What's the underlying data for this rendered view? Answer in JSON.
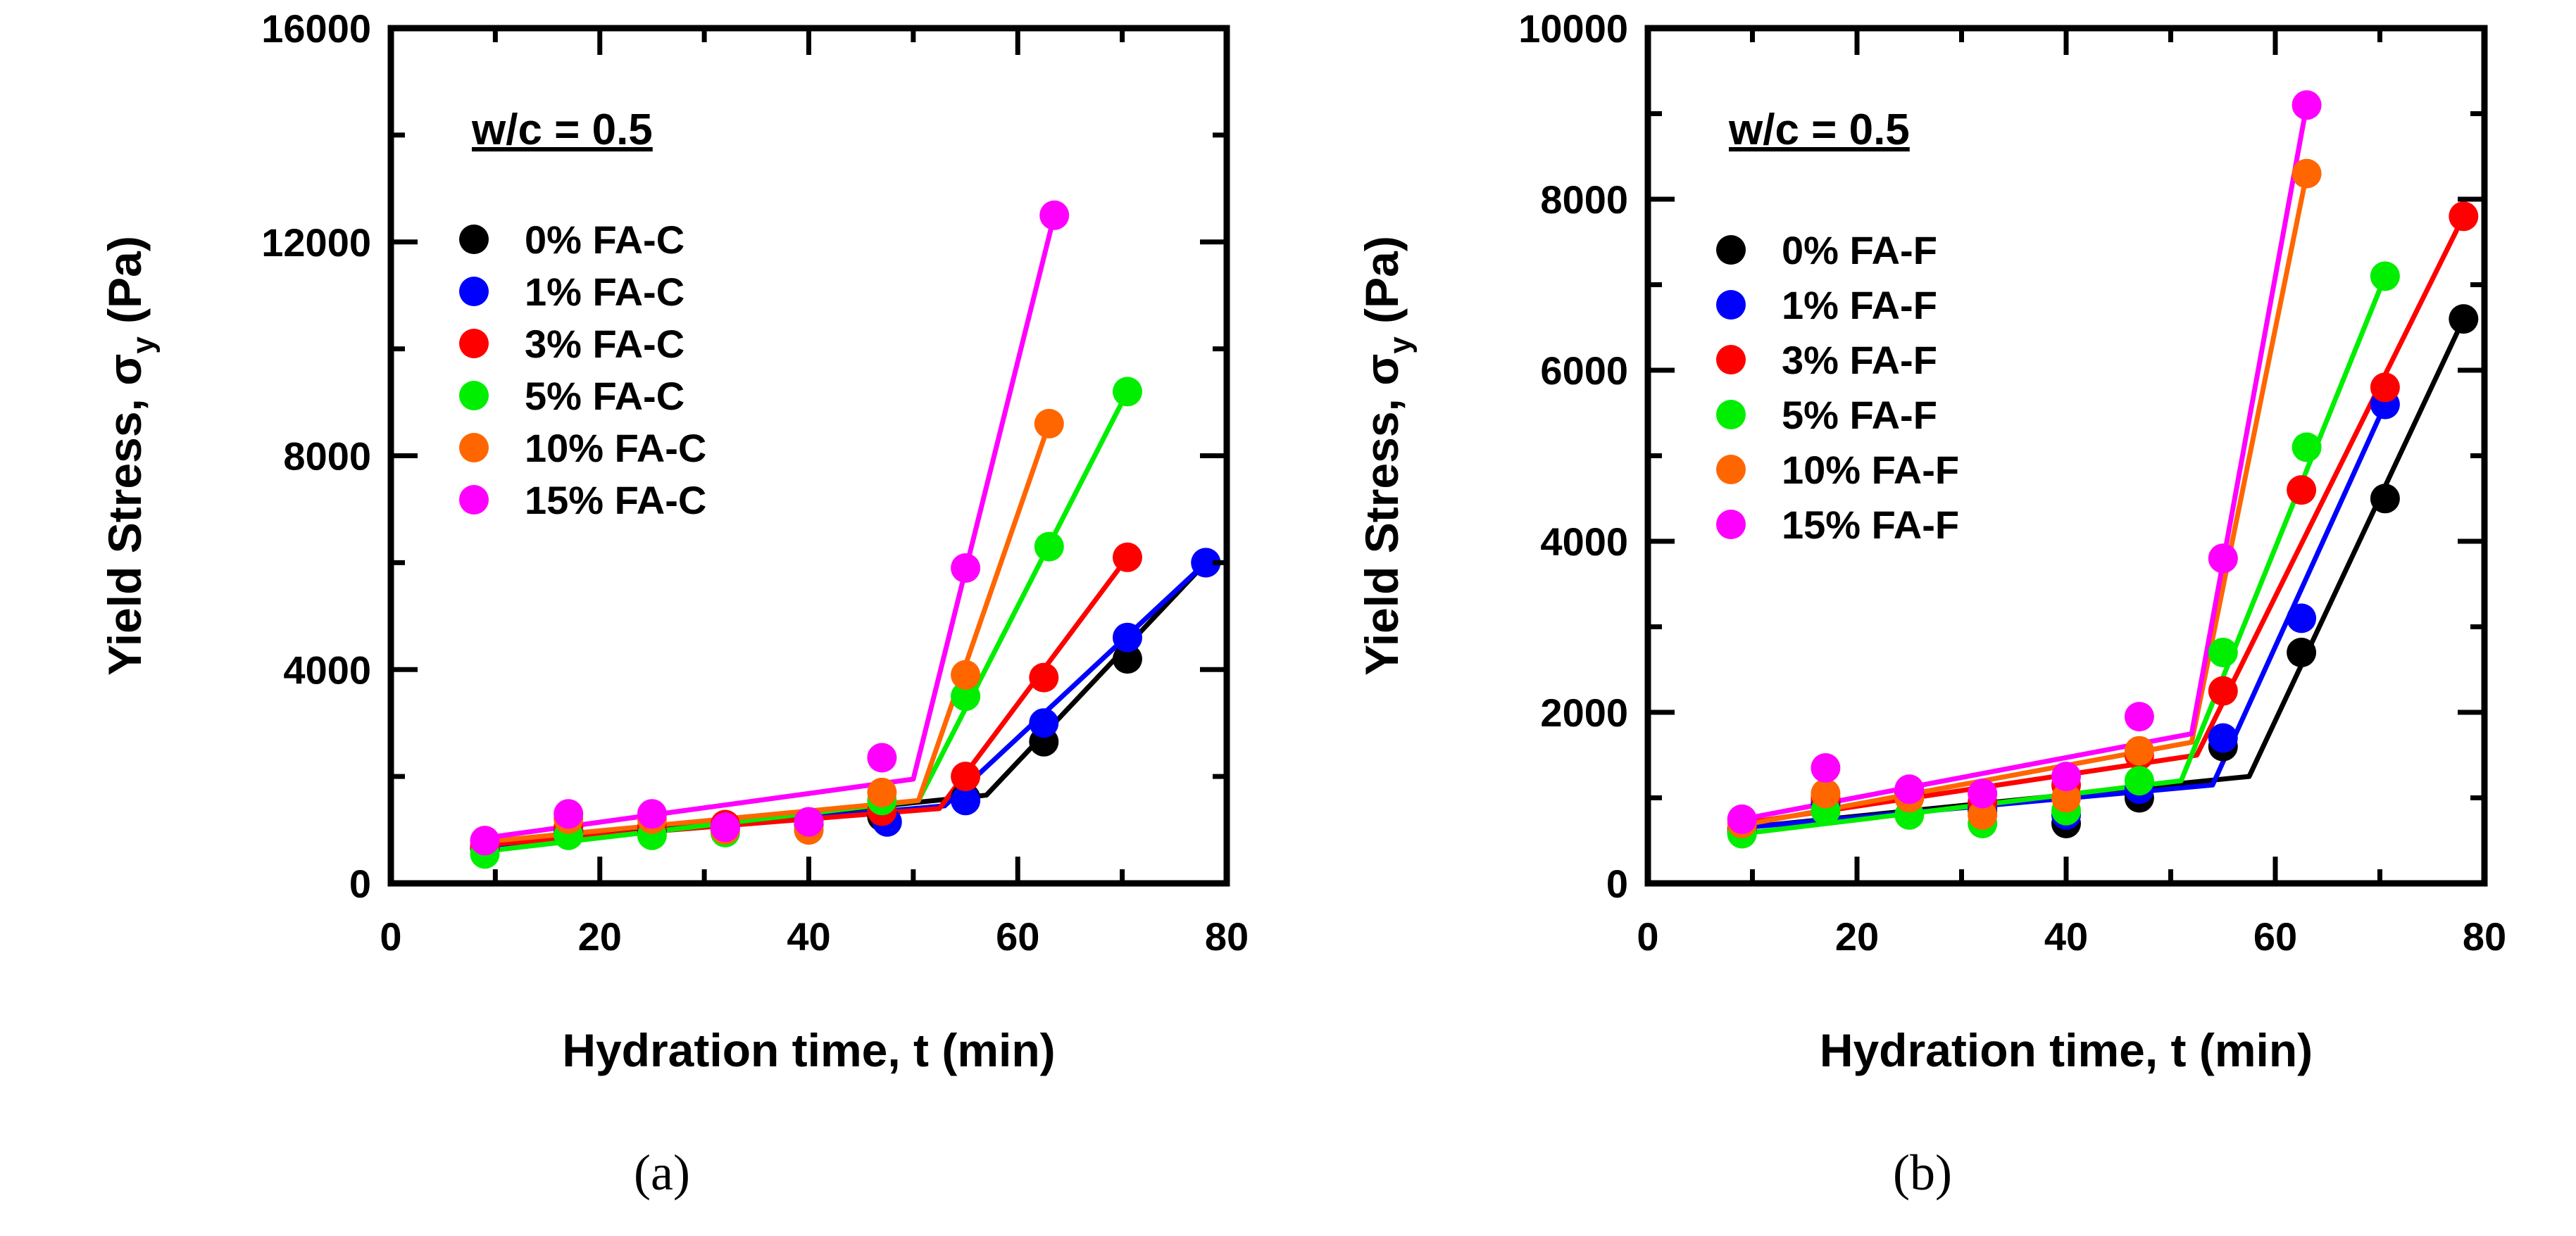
{
  "chart_data": [
    {
      "type": "scatter",
      "panel_label": "(a)",
      "annotation": "w/c = 0.5",
      "xlabel": "Hydration time, t (min)",
      "ylabel_main": "Yield Stress, σ",
      "ylabel_sub": "y",
      "ylabel_unit": " (Pa)",
      "xlim": [
        0,
        80
      ],
      "ylim": [
        0,
        16000
      ],
      "xticks": [
        0,
        20,
        40,
        60,
        80
      ],
      "yticks": [
        0,
        4000,
        8000,
        12000,
        16000
      ],
      "xtick_labels": [
        "0",
        "20",
        "40",
        "60",
        "80"
      ],
      "ytick_labels": [
        "0",
        "4000",
        "8000",
        "12000",
        "16000"
      ],
      "legend_position": "top-left",
      "series": [
        {
          "name": "0% FA-C",
          "color": "#000000",
          "x": [
            9,
            17,
            25,
            32,
            40,
            47,
            55,
            62.5,
            70.5,
            78
          ],
          "y": [
            650,
            950,
            980,
            1000,
            1100,
            1250,
            1600,
            2650,
            4200,
            6000
          ],
          "fit": [
            [
              9,
              680
            ],
            [
              57,
              1650
            ],
            [
              78,
              6000
            ]
          ]
        },
        {
          "name": "1% FA-C",
          "color": "#0000ff",
          "x": [
            9,
            17,
            25,
            32,
            40,
            47.5,
            55,
            62.5,
            70.5,
            78
          ],
          "y": [
            680,
            1000,
            1000,
            1050,
            1150,
            1150,
            1550,
            3000,
            4600,
            6000
          ],
          "fit": [
            [
              9,
              700
            ],
            [
              53,
              1450
            ],
            [
              78,
              6000
            ]
          ]
        },
        {
          "name": "3% FA-C",
          "color": "#ff0000",
          "x": [
            9,
            17,
            25,
            32,
            40,
            47,
            55,
            62.5,
            70.5
          ],
          "y": [
            700,
            1050,
            1050,
            1100,
            1150,
            1350,
            2000,
            3850,
            6100
          ],
          "fit": [
            [
              9,
              720
            ],
            [
              52.5,
              1400
            ],
            [
              70.5,
              6100
            ]
          ]
        },
        {
          "name": "5% FA-C",
          "color": "#00ee00",
          "x": [
            9,
            17,
            25,
            32,
            40,
            47,
            55,
            63,
            70.5
          ],
          "y": [
            550,
            900,
            900,
            950,
            1000,
            1550,
            3500,
            6300,
            9200
          ],
          "fit": [
            [
              9,
              600
            ],
            [
              50.5,
              1550
            ],
            [
              70.5,
              9200
            ]
          ]
        },
        {
          "name": "10% FA-C",
          "color": "#ff6600",
          "x": [
            9,
            17,
            25,
            32,
            40,
            47,
            55,
            63
          ],
          "y": [
            800,
            1200,
            1200,
            1000,
            1000,
            1700,
            3900,
            8600
          ],
          "fit": [
            [
              9,
              780
            ],
            [
              50.5,
              1550
            ],
            [
              63,
              8600
            ]
          ]
        },
        {
          "name": "15% FA-C",
          "color": "#ff00ff",
          "x": [
            9,
            17,
            25,
            32,
            40,
            47,
            55,
            63.5
          ],
          "y": [
            800,
            1300,
            1300,
            1050,
            1150,
            2350,
            5900,
            12500
          ],
          "fit": [
            [
              9,
              850
            ],
            [
              50,
              1950
            ],
            [
              63.5,
              12500
            ]
          ]
        }
      ]
    },
    {
      "type": "scatter",
      "panel_label": "(b)",
      "annotation": "w/c = 0.5",
      "xlabel": "Hydration time, t (min)",
      "ylabel_main": "Yield Stress, σ",
      "ylabel_sub": "y",
      "ylabel_unit": " (Pa)",
      "xlim": [
        0,
        80
      ],
      "ylim": [
        0,
        10000
      ],
      "xticks": [
        0,
        20,
        40,
        60,
        80
      ],
      "yticks": [
        0,
        2000,
        4000,
        6000,
        8000,
        10000
      ],
      "xtick_labels": [
        "0",
        "20",
        "40",
        "60",
        "80"
      ],
      "ytick_labels": [
        "0",
        "2000",
        "4000",
        "6000",
        "8000",
        "10000"
      ],
      "legend_position": "top-left",
      "series": [
        {
          "name": "0% FA-F",
          "color": "#000000",
          "x": [
            9,
            17,
            25,
            32,
            40,
            47,
            55,
            62.5,
            70.5,
            78
          ],
          "y": [
            600,
            950,
            1050,
            850,
            700,
            1000,
            1600,
            2700,
            4500,
            6600
          ],
          "fit": [
            [
              9,
              650
            ],
            [
              57.5,
              1250
            ],
            [
              78,
              6600
            ]
          ]
        },
        {
          "name": "1% FA-F",
          "color": "#0000ff",
          "x": [
            9,
            17,
            25,
            32,
            40,
            47,
            55,
            62.5,
            70.5
          ],
          "y": [
            620,
            950,
            1050,
            900,
            800,
            1100,
            1700,
            3100,
            5600
          ],
          "fit": [
            [
              9,
              650
            ],
            [
              54,
              1150
            ],
            [
              70.5,
              5600
            ]
          ]
        },
        {
          "name": "3% FA-F",
          "color": "#ff0000",
          "x": [
            9,
            17,
            25,
            32,
            40,
            47,
            55,
            62.5,
            70.5,
            78
          ],
          "y": [
            650,
            1000,
            1050,
            950,
            1150,
            1500,
            2250,
            4600,
            5800,
            7800
          ],
          "fit": [
            [
              9,
              700
            ],
            [
              52.5,
              1500
            ],
            [
              78,
              7800
            ]
          ]
        },
        {
          "name": "5% FA-F",
          "color": "#00ee00",
          "x": [
            9,
            17,
            25,
            32,
            40,
            47,
            55,
            63,
            70.5
          ],
          "y": [
            580,
            850,
            800,
            700,
            850,
            1200,
            2700,
            5100,
            7100
          ],
          "fit": [
            [
              9,
              580
            ],
            [
              51,
              1200
            ],
            [
              70.5,
              7100
            ]
          ]
        },
        {
          "name": "10% FA-F",
          "color": "#ff6600",
          "x": [
            9,
            17,
            25,
            32,
            40,
            47,
            55,
            63
          ],
          "y": [
            700,
            1050,
            1000,
            800,
            1000,
            1550,
            3800,
            8300
          ],
          "fit": [
            [
              9,
              680
            ],
            [
              52,
              1650
            ],
            [
              63,
              8300
            ]
          ]
        },
        {
          "name": "15% FA-F",
          "color": "#ff00ff",
          "x": [
            9,
            17,
            25,
            32,
            40,
            47,
            55,
            63
          ],
          "y": [
            750,
            1350,
            1100,
            1050,
            1250,
            1950,
            3800,
            9100
          ],
          "fit": [
            [
              9,
              750
            ],
            [
              52,
              1750
            ],
            [
              63,
              9100
            ]
          ]
        }
      ]
    }
  ]
}
